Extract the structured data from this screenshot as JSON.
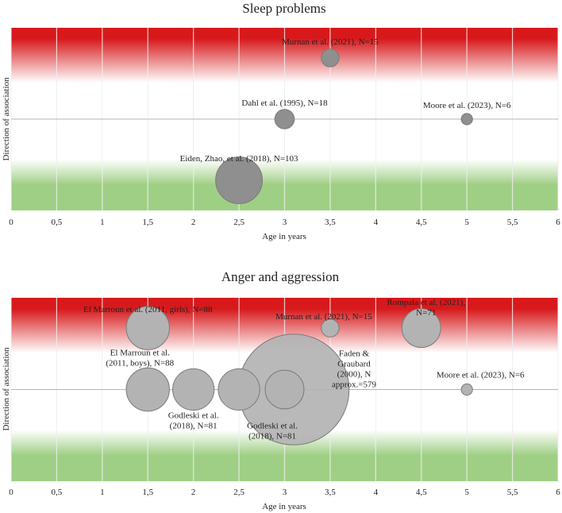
{
  "colors": {
    "negative_band": "#d7191c",
    "positive_band": "#9fcf84",
    "bubble_fill": "#b3b3b3",
    "bubble_fill_dark": "#8f8f8f",
    "bubble_stroke": "#7a7a7a",
    "grid": "#cfcfcf",
    "axis_line": "#b5b5b5"
  },
  "chart_data": [
    {
      "type": "bubble",
      "title": "Sleep problems",
      "xlabel": "Age in years",
      "ylabel": "Direction of association",
      "xlim": [
        0,
        6
      ],
      "x_tick_labels": [
        "0",
        "0,5",
        "1",
        "1,5",
        "2",
        "2,5",
        "3",
        "3,5",
        "4",
        "4,5",
        "5",
        "5,5",
        "6"
      ],
      "background_bands": {
        "top": "red (adverse association)",
        "bottom": "green (favourable association)"
      },
      "points": [
        {
          "label": "Murnan et al. (2021), N=15",
          "x": 3.5,
          "y": 0.67,
          "n": 15,
          "shade": "dark"
        },
        {
          "label": "Dahl et al. (1995), N=18",
          "x": 3.0,
          "y": 0.0,
          "n": 18,
          "shade": "dark"
        },
        {
          "label": "Moore et al. (2023), N=6",
          "x": 5.0,
          "y": 0.0,
          "n": 6,
          "shade": "dark"
        },
        {
          "label": "Eiden, Zhao, et al. (2018), N=103",
          "x": 2.5,
          "y": -0.67,
          "n": 103,
          "shade": "dark"
        }
      ]
    },
    {
      "type": "bubble",
      "title": "Anger and aggression",
      "xlabel": "Age in years",
      "ylabel": "Direction of association",
      "xlim": [
        0,
        6
      ],
      "x_tick_labels": [
        "0",
        "0,5",
        "1",
        "1,5",
        "2",
        "2,5",
        "3",
        "3,5",
        "4",
        "4,5",
        "5",
        "5,5",
        "6"
      ],
      "background_bands": {
        "top": "red (adverse association)",
        "bottom": "green (favourable association)"
      },
      "points": [
        {
          "label": "El Marroun et al. (2011, girls), N=88",
          "x": 1.5,
          "y": 0.67,
          "n": 88,
          "shade": "light"
        },
        {
          "label": "Murnan et al. (2021), N=15",
          "x": 3.5,
          "y": 0.67,
          "n": 15,
          "shade": "light"
        },
        {
          "label": "Rompala et al. (2021), N=71",
          "x": 4.5,
          "y": 0.67,
          "n": 71,
          "shade": "light"
        },
        {
          "label": "El Marroun et al. (2011, boys), N=88",
          "x": 1.5,
          "y": 0.0,
          "n": 88,
          "shade": "light"
        },
        {
          "label": "Godleski et al. (2018), N=81",
          "x": 2.0,
          "y": 0.0,
          "n": 81,
          "shade": "light"
        },
        {
          "label": "Godleski et al. (2018), N=81",
          "x": 2.5,
          "y": 0.0,
          "n": 81,
          "shade": "light"
        },
        {
          "label": "Faden & Graubard (2000), N approx.=579",
          "x": 3.1,
          "y": 0.0,
          "n": 579,
          "shade": "light"
        },
        {
          "label": "",
          "x": 3.0,
          "y": 0.0,
          "n": 71,
          "shade": "light"
        },
        {
          "label": "Moore et al. (2023), N=6",
          "x": 5.0,
          "y": 0.0,
          "n": 6,
          "shade": "light"
        }
      ]
    }
  ]
}
